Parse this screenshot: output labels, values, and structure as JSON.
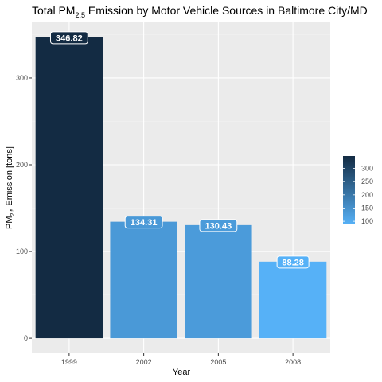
{
  "chart_data": {
    "type": "bar",
    "title_prefix": "Total PM",
    "title_subscript": "2.5",
    "title_suffix": " Emission by Motor Vehicle Sources in Baltimore City/MD",
    "xlabel": "Year",
    "ylabel_prefix": "PM",
    "ylabel_subscript": "2.5",
    "ylabel_suffix": " Emission [tons]",
    "categories": [
      "1999",
      "2002",
      "2005",
      "2008"
    ],
    "values": [
      346.82,
      134.31,
      130.43,
      88.28
    ],
    "data_labels": [
      "346.82",
      "134.31",
      "130.43",
      "88.28"
    ],
    "ylim": [
      -17.34,
      364.16
    ],
    "y_ticks": [
      0,
      100,
      200,
      300
    ],
    "grid": true,
    "legend": {
      "position": "right",
      "ticks": [
        100,
        150,
        200,
        250,
        300
      ],
      "range": [
        88.28,
        346.82
      ],
      "color_low": "#56B1F7",
      "color_high": "#132B43"
    },
    "colors": {
      "panel_background": "#ebebeb",
      "grid_major": "#ffffff",
      "grid_minor": "#f2f2f2"
    }
  }
}
